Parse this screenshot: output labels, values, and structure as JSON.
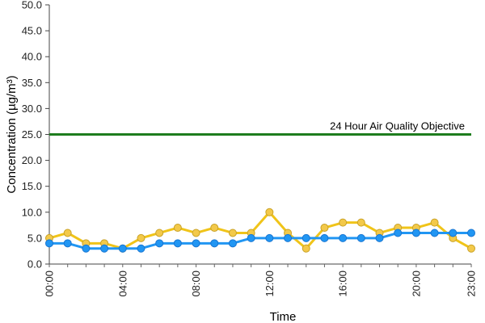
{
  "chart_data": {
    "type": "line",
    "xlabel": "Time",
    "ylabel": "Concentration (µg/m³)",
    "ylim": [
      0,
      50
    ],
    "y_ticks": [
      "0.0",
      "5.0",
      "10.0",
      "15.0",
      "20.0",
      "25.0",
      "30.0",
      "35.0",
      "40.0",
      "45.0",
      "50.0"
    ],
    "x_hours": [
      0,
      1,
      2,
      3,
      4,
      5,
      6,
      7,
      8,
      9,
      10,
      11,
      12,
      13,
      14,
      15,
      16,
      17,
      18,
      19,
      20,
      21,
      22,
      23
    ],
    "x_tick_labels": [
      "00:00",
      "04:00",
      "08:00",
      "12:00",
      "16:00",
      "20:00",
      "23:00"
    ],
    "x_tick_hours": [
      0,
      4,
      8,
      12,
      16,
      20,
      23
    ],
    "reference_line": {
      "label": "24 Hour Air Quality Objective",
      "value": 25,
      "color": "#1e7d1e"
    },
    "series": [
      {
        "color": "#f0c419",
        "marker_fill": "#f3c94a",
        "marker_stroke": "#c9a227",
        "values": [
          5,
          6,
          4,
          4,
          3,
          5,
          6,
          7,
          6,
          7,
          6,
          6,
          10,
          6,
          3,
          7,
          8,
          8,
          6,
          7,
          7,
          8,
          5,
          3
        ]
      },
      {
        "color": "#2196f3",
        "marker_fill": "#2196f3",
        "marker_stroke": "#1976d2",
        "values": [
          4,
          4,
          3,
          3,
          3,
          3,
          4,
          4,
          4,
          4,
          4,
          5,
          5,
          5,
          5,
          5,
          5,
          5,
          5,
          6,
          6,
          6,
          6,
          6
        ]
      }
    ]
  }
}
